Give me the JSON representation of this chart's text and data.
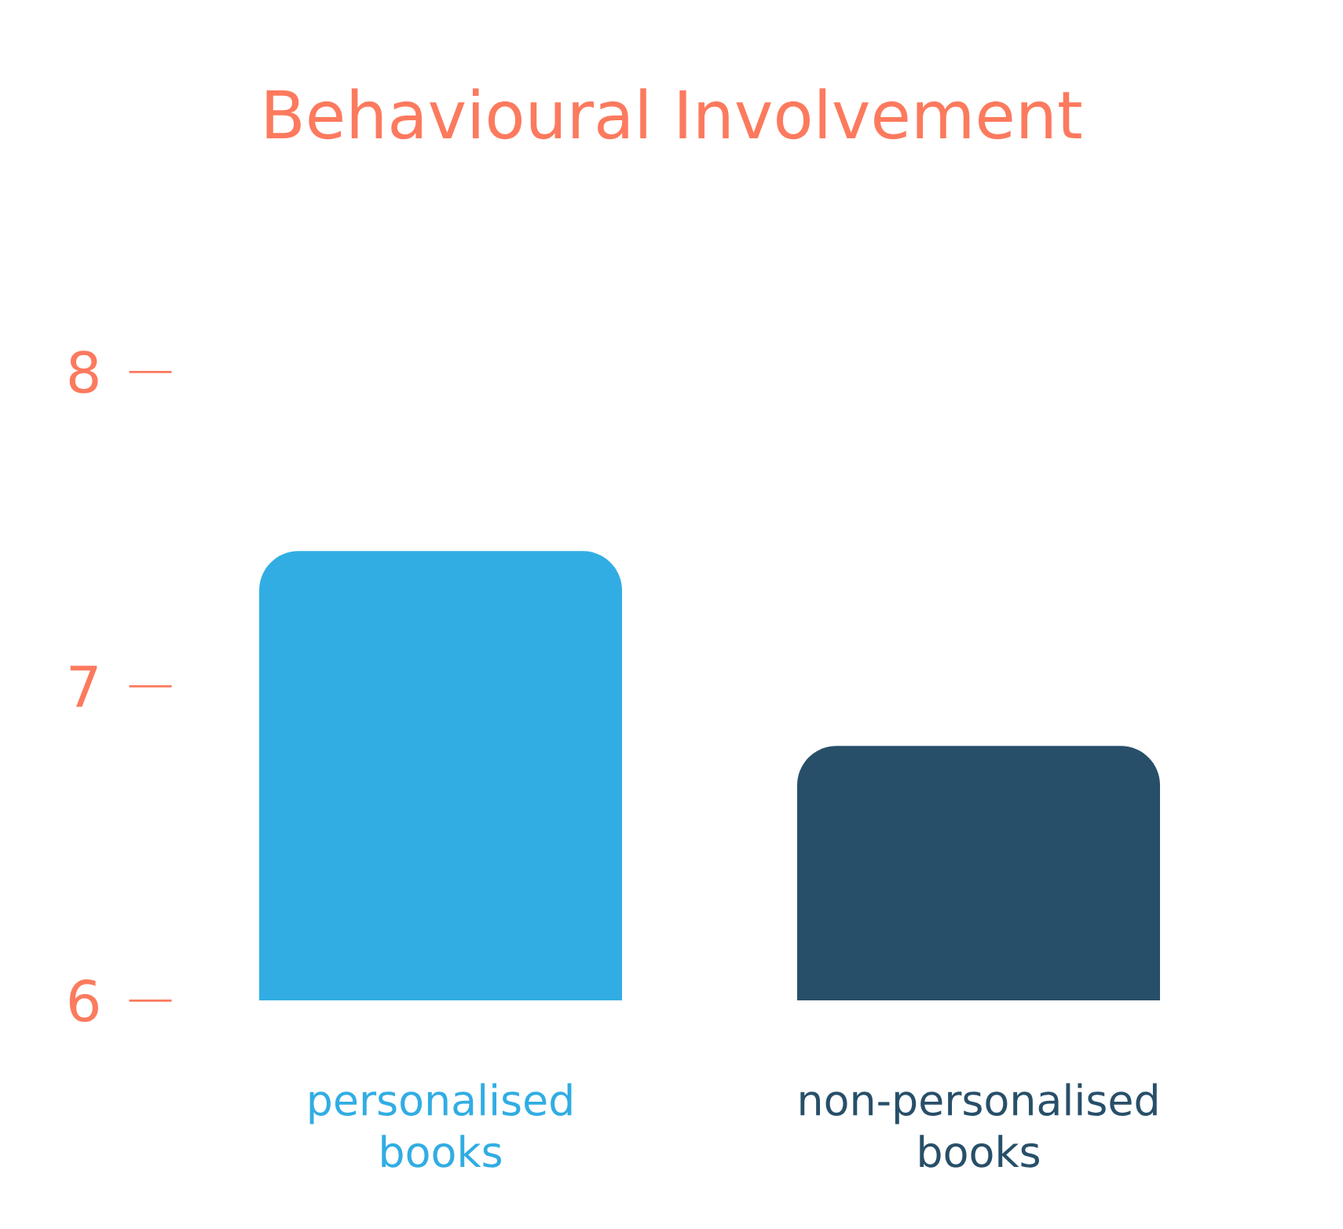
{
  "chart_data": {
    "type": "bar",
    "title": "Behavioural Involvement",
    "categories": [
      "personalised books",
      "non-personalised books"
    ],
    "values": [
      7.43,
      6.81
    ],
    "colors": [
      "#31ade3",
      "#284f69"
    ],
    "ylim": [
      6,
      8
    ],
    "yticks": [
      6,
      7,
      8
    ]
  }
}
